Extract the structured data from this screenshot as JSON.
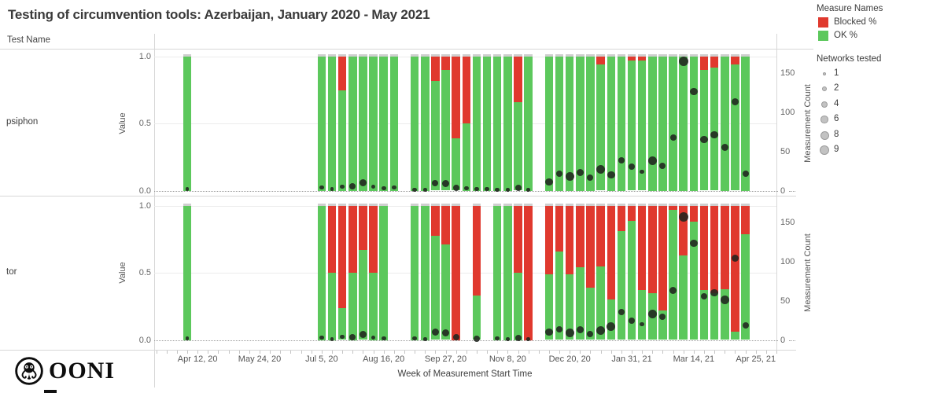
{
  "chart_data": {
    "type": "bar",
    "title": "Testing of circumvention tools: Azerbaijan, January 2020 - May 2021",
    "row_header": "Test Name",
    "x_axis": {
      "title": "Week of Measurement Start Time",
      "ticks": [
        {
          "label": "Apr 12, 20",
          "week": 1
        },
        {
          "label": "May 24, 20",
          "week": 7
        },
        {
          "label": "Jul 5, 20",
          "week": 13
        },
        {
          "label": "Aug 16, 20",
          "week": 19
        },
        {
          "label": "Sep 27, 20",
          "week": 25
        },
        {
          "label": "Nov 8, 20",
          "week": 31
        },
        {
          "label": "Dec 20, 20",
          "week": 37
        },
        {
          "label": "Jan 31, 21",
          "week": 43
        },
        {
          "label": "Mar 14, 21",
          "week": 49
        },
        {
          "label": "Apr 25, 21",
          "week": 55
        }
      ]
    },
    "value_axis": {
      "title": "Value",
      "ticks": [
        "1.0",
        "0.5",
        "0.0"
      ],
      "range": [
        0,
        1
      ]
    },
    "count_axis": {
      "title": "Measurement Count",
      "ticks": [
        150,
        100,
        50,
        0
      ],
      "range": [
        0,
        175
      ]
    },
    "legend": {
      "measures_title": "Measure Names",
      "measures": [
        {
          "label": "Blocked %",
          "color": "#e0392e"
        },
        {
          "label": "OK %",
          "color": "#5cc85c"
        }
      ],
      "networks_title": "Networks tested",
      "networks": [
        {
          "label": "1",
          "r": 2.3
        },
        {
          "label": "2",
          "r": 2.9
        },
        {
          "label": "4",
          "r": 4.0
        },
        {
          "label": "6",
          "r": 4.8
        },
        {
          "label": "8",
          "r": 5.5
        },
        {
          "label": "9",
          "r": 6.0
        }
      ]
    },
    "bar_fields": [
      "week",
      "ok_pct",
      "blocked_pct",
      "measurement_count",
      "networks_tested"
    ],
    "panels": [
      {
        "name": "psiphon",
        "bars": [
          [
            0,
            100,
            0,
            2,
            1
          ],
          [
            13,
            100,
            0,
            4,
            2
          ],
          [
            14,
            100,
            0,
            2,
            1
          ],
          [
            15,
            75,
            25,
            5,
            2
          ],
          [
            16,
            100,
            0,
            6,
            4
          ],
          [
            17,
            100,
            0,
            10,
            6
          ],
          [
            18,
            100,
            0,
            5,
            2
          ],
          [
            19,
            100,
            0,
            3,
            2
          ],
          [
            20,
            100,
            0,
            4,
            2
          ],
          [
            22,
            100,
            0,
            1,
            2
          ],
          [
            23,
            100,
            0,
            1,
            1
          ],
          [
            24,
            82,
            18,
            10,
            4
          ],
          [
            25,
            90,
            10,
            9,
            6
          ],
          [
            26,
            39,
            61,
            4,
            4
          ],
          [
            27,
            50,
            50,
            3,
            2
          ],
          [
            28,
            100,
            0,
            2,
            2
          ],
          [
            29,
            100,
            0,
            2,
            2
          ],
          [
            30,
            100,
            0,
            1,
            2
          ],
          [
            31,
            100,
            0,
            1,
            1
          ],
          [
            32,
            66,
            34,
            4,
            4
          ],
          [
            33,
            100,
            0,
            1,
            1
          ],
          [
            35,
            100,
            0,
            11,
            6
          ],
          [
            36,
            100,
            0,
            22,
            4
          ],
          [
            37,
            100,
            0,
            18,
            8
          ],
          [
            38,
            100,
            0,
            23,
            6
          ],
          [
            39,
            100,
            0,
            17,
            4
          ],
          [
            40,
            94,
            6,
            27,
            8
          ],
          [
            41,
            100,
            0,
            20,
            6
          ],
          [
            42,
            100,
            0,
            39,
            4
          ],
          [
            43,
            97,
            3,
            31,
            4
          ],
          [
            44,
            97,
            3,
            24,
            2
          ],
          [
            45,
            100,
            0,
            38,
            8
          ],
          [
            46,
            100,
            0,
            32,
            4
          ],
          [
            47,
            100,
            0,
            68,
            4
          ],
          [
            48,
            100,
            0,
            165,
            9
          ],
          [
            49,
            100,
            0,
            126,
            6
          ],
          [
            50,
            90,
            10,
            65,
            6
          ],
          [
            51,
            92,
            8,
            71,
            6
          ],
          [
            52,
            100,
            0,
            55,
            6
          ],
          [
            53,
            94,
            6,
            113,
            6
          ],
          [
            54,
            100,
            0,
            22,
            4
          ]
        ]
      },
      {
        "name": "tor",
        "bars": [
          [
            0,
            100,
            0,
            2,
            1
          ],
          [
            13,
            100,
            0,
            3,
            2
          ],
          [
            14,
            50,
            50,
            1,
            1
          ],
          [
            15,
            24,
            76,
            4,
            2
          ],
          [
            16,
            50,
            50,
            4,
            4
          ],
          [
            17,
            67,
            33,
            7,
            6
          ],
          [
            18,
            50,
            50,
            3,
            2
          ],
          [
            19,
            100,
            0,
            2,
            2
          ],
          [
            22,
            100,
            0,
            2,
            2
          ],
          [
            23,
            100,
            0,
            1,
            1
          ],
          [
            24,
            78,
            22,
            10,
            6
          ],
          [
            25,
            71,
            29,
            9,
            6
          ],
          [
            26,
            0,
            100,
            4,
            4
          ],
          [
            28,
            33,
            67,
            2,
            4
          ],
          [
            30,
            100,
            0,
            2,
            2
          ],
          [
            31,
            100,
            0,
            1,
            1
          ],
          [
            32,
            50,
            50,
            3,
            4
          ],
          [
            33,
            0,
            100,
            1,
            1
          ],
          [
            35,
            49,
            51,
            10,
            6
          ],
          [
            36,
            66,
            34,
            14,
            4
          ],
          [
            37,
            49,
            51,
            9,
            8
          ],
          [
            38,
            54,
            46,
            13,
            6
          ],
          [
            39,
            39,
            61,
            8,
            4
          ],
          [
            40,
            55,
            45,
            12,
            8
          ],
          [
            41,
            30,
            70,
            17,
            8
          ],
          [
            42,
            81,
            19,
            36,
            4
          ],
          [
            43,
            89,
            11,
            25,
            4
          ],
          [
            44,
            37,
            63,
            20,
            2
          ],
          [
            45,
            35,
            65,
            33,
            8
          ],
          [
            46,
            22,
            78,
            30,
            4
          ],
          [
            47,
            97,
            3,
            63,
            6
          ],
          [
            48,
            63,
            37,
            157,
            9
          ],
          [
            49,
            88,
            12,
            123,
            6
          ],
          [
            50,
            37,
            63,
            56,
            4
          ],
          [
            51,
            35,
            65,
            60,
            6
          ],
          [
            52,
            38,
            62,
            51,
            8
          ],
          [
            53,
            6,
            94,
            104,
            6
          ],
          [
            54,
            79,
            21,
            19,
            4
          ]
        ]
      }
    ]
  },
  "branding": {
    "logo_text": "OONI"
  },
  "colors": {
    "ok": "#5cc85c",
    "blocked": "#e0392e",
    "bar_cap": "#cfcfcf",
    "dot": "#20241f",
    "grid": "#ececec",
    "border": "#d7d7d7"
  }
}
